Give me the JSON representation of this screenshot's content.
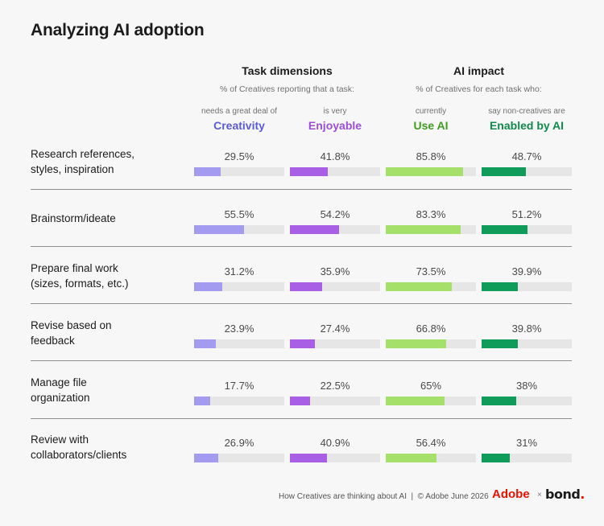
{
  "title": "Analyzing AI adoption",
  "groups": [
    {
      "title": "Task dimensions",
      "subtitle": "% of Creatives reporting that a task:"
    },
    {
      "title": "AI impact",
      "subtitle": "% of Creatives for each task who:"
    }
  ],
  "columns": [
    {
      "pre": "needs a great deal of",
      "label": "Creativity",
      "color": "#5b5bd6",
      "bar_color": "#a39bf0"
    },
    {
      "pre": "is very",
      "label": "Enjoyable",
      "color": "#9b4fd6",
      "bar_color": "#a85fe6"
    },
    {
      "pre": "currently",
      "label": "Use AI",
      "color": "#3f9e1e",
      "bar_color": "#a5e06a"
    },
    {
      "pre": "say non-creatives are",
      "label": "Enabled by AI",
      "color": "#0f8a4a",
      "bar_color": "#0f9b5a"
    }
  ],
  "chart_data": {
    "type": "bar",
    "title": "Analyzing AI adoption",
    "categories": [
      "Research references,\nstyles, inspiration",
      "Brainstorm/ideate",
      "Prepare final work\n(sizes, formats, etc.)",
      "Revise based on\nfeedback",
      "Manage file\norganization",
      "Review with\ncollaborators/clients"
    ],
    "series": [
      {
        "name": "Creativity",
        "values": [
          29.5,
          55.5,
          31.2,
          23.9,
          17.7,
          26.9
        ],
        "labels": [
          "29.5%",
          "55.5%",
          "31.2%",
          "23.9%",
          "17.7%",
          "26.9%"
        ]
      },
      {
        "name": "Enjoyable",
        "values": [
          41.8,
          54.2,
          35.9,
          27.4,
          22.5,
          40.9
        ],
        "labels": [
          "41.8%",
          "54.2%",
          "35.9%",
          "27.4%",
          "22.5%",
          "40.9%"
        ]
      },
      {
        "name": "Use AI",
        "values": [
          85.8,
          83.3,
          73.5,
          66.8,
          65,
          56.4
        ],
        "labels": [
          "85.8%",
          "83.3%",
          "73.5%",
          "66.8%",
          "65%",
          "56.4%"
        ]
      },
      {
        "name": "Enabled by AI",
        "values": [
          48.7,
          51.2,
          39.9,
          39.8,
          38,
          31
        ],
        "labels": [
          "48.7%",
          "51.2%",
          "39.9%",
          "39.8%",
          "38%",
          "31%"
        ]
      }
    ],
    "ylim": [
      0,
      100
    ]
  },
  "footer": "How Creatives are thinking about AI  |  © Adobe June 2026",
  "logos": {
    "adobe": "Adobe",
    "times": "×",
    "bond": "bond"
  }
}
